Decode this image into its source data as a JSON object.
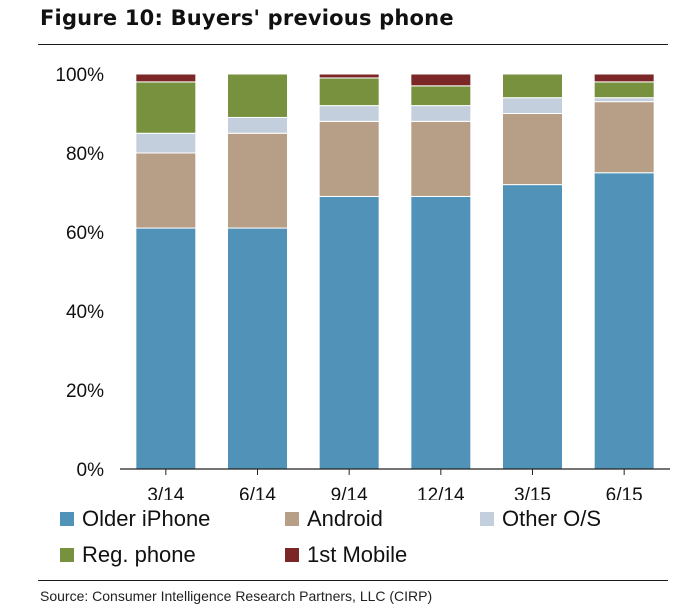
{
  "title": "Figure 10: Buyers' previous phone",
  "source": "Source:  Consumer Intelligence Research Partners, LLC (CIRP)",
  "chart_data": {
    "type": "bar",
    "stacked": true,
    "title": "Figure 10: Buyers' previous phone",
    "xlabel": "",
    "ylabel": "",
    "ylim": [
      0,
      100
    ],
    "y_ticks": [
      "0%",
      "20%",
      "40%",
      "60%",
      "80%",
      "100%"
    ],
    "y_tick_values": [
      0,
      20,
      40,
      60,
      80,
      100
    ],
    "grid": false,
    "legend_position": "bottom",
    "categories": [
      "3/14",
      "6/14",
      "9/14",
      "12/14",
      "3/15",
      "6/15"
    ],
    "series": [
      {
        "name": "Older iPhone",
        "color": "#5193b8",
        "values": [
          61,
          61,
          69,
          69,
          72,
          75
        ]
      },
      {
        "name": "Android",
        "color": "#b69e87",
        "values": [
          19,
          24,
          19,
          19,
          18,
          18
        ]
      },
      {
        "name": "Other O/S",
        "color": "#c3cfdc",
        "values": [
          5,
          4,
          4,
          4,
          4,
          1
        ]
      },
      {
        "name": "Reg. phone",
        "color": "#77913f",
        "values": [
          13,
          11,
          7,
          5,
          6,
          4
        ]
      },
      {
        "name": "1st Mobile",
        "color": "#7b2627",
        "values": [
          2,
          0,
          1,
          3,
          0,
          2
        ]
      }
    ]
  }
}
